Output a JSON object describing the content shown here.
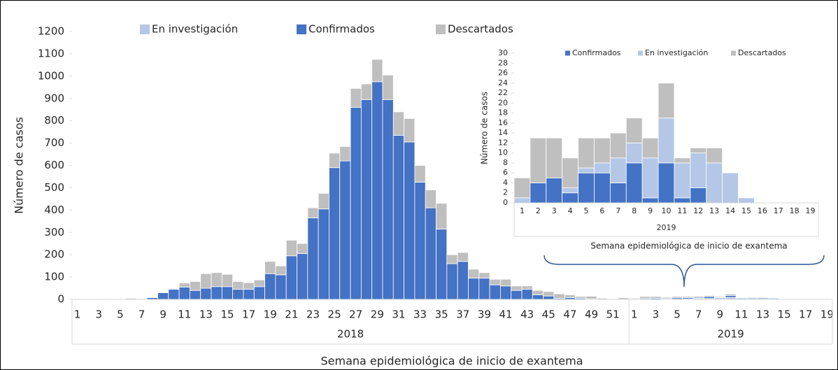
{
  "chart_data": [
    {
      "type": "bar",
      "stacked": true,
      "x_label": "Semana epidemiológica de inicio de exantema",
      "y_label": "Número de casos",
      "categories": [
        "1",
        null,
        "3",
        null,
        "5",
        null,
        "7",
        null,
        "9",
        null,
        "11",
        null,
        "13",
        null,
        "15",
        null,
        "17",
        null,
        "19",
        null,
        "21",
        null,
        "23",
        null,
        "25",
        null,
        "27",
        null,
        "29",
        null,
        "31",
        null,
        "33",
        null,
        "35",
        null,
        "37",
        null,
        "39",
        null,
        "41",
        null,
        "43",
        null,
        "45",
        null,
        "47",
        null,
        "49",
        null,
        "51",
        null,
        "1",
        null,
        "3",
        null,
        "5",
        null,
        "7",
        null,
        "9",
        null,
        "11",
        null,
        "13",
        null,
        "15",
        null,
        "17",
        null,
        "19"
      ],
      "groups": [
        {
          "label": "2018",
          "size": 52
        },
        {
          "label": "2019",
          "size": 19
        }
      ],
      "series": [
        {
          "name": "En investigación",
          "color": "#b4c7e7",
          "values": [
            0,
            0,
            0,
            0,
            0,
            0,
            0,
            0,
            0,
            0,
            0,
            0,
            0,
            0,
            0,
            0,
            0,
            0,
            0,
            0,
            0,
            0,
            0,
            0,
            0,
            0,
            0,
            0,
            0,
            0,
            0,
            0,
            0,
            0,
            0,
            0,
            0,
            0,
            0,
            0,
            0,
            0,
            0,
            0,
            0,
            0,
            0,
            0,
            0,
            0,
            0,
            0,
            1,
            0,
            0,
            1,
            1,
            2,
            5,
            4,
            8,
            9,
            7,
            7,
            8,
            6,
            1,
            0,
            0,
            0,
            0
          ]
        },
        {
          "name": "Confirmados",
          "color": "#4472c4",
          "values": [
            0,
            0,
            0,
            0,
            0,
            0,
            0,
            8,
            30,
            45,
            55,
            40,
            50,
            57,
            57,
            45,
            45,
            57,
            115,
            110,
            195,
            205,
            365,
            405,
            590,
            620,
            860,
            895,
            975,
            895,
            735,
            705,
            525,
            410,
            315,
            160,
            170,
            95,
            95,
            65,
            60,
            40,
            45,
            20,
            15,
            5,
            8,
            5,
            2,
            0,
            0,
            0,
            0,
            4,
            5,
            2,
            6,
            6,
            4,
            8,
            1,
            8,
            1,
            3,
            0,
            0,
            0,
            0,
            0,
            0,
            0
          ]
        },
        {
          "name": "Descartados",
          "color": "#bfbfbf",
          "values": [
            3,
            2,
            3,
            2,
            3,
            5,
            3,
            2,
            2,
            2,
            18,
            40,
            65,
            63,
            55,
            35,
            30,
            30,
            55,
            40,
            70,
            45,
            45,
            70,
            65,
            65,
            85,
            70,
            100,
            110,
            105,
            105,
            75,
            80,
            115,
            40,
            40,
            40,
            25,
            25,
            30,
            20,
            15,
            20,
            20,
            20,
            12,
            8,
            12,
            5,
            3,
            7,
            4,
            9,
            8,
            6,
            6,
            5,
            5,
            5,
            4,
            7,
            1,
            1,
            3,
            0,
            0,
            0,
            0,
            0,
            0
          ]
        }
      ],
      "ylim": [
        0,
        1200
      ],
      "yticks": [
        0,
        100,
        200,
        300,
        400,
        500,
        600,
        700,
        800,
        900,
        1000,
        1100,
        1200
      ]
    },
    {
      "type": "bar",
      "stacked": true,
      "x_label": "Semana epidemiológica de inicio de exantema",
      "y_label": "Número de casos",
      "categories": [
        "1",
        "2",
        "3",
        "4",
        "5",
        "6",
        "7",
        "8",
        "9",
        "10",
        "11",
        "12",
        "13",
        "14",
        "15",
        "16",
        "17",
        "18",
        "19"
      ],
      "groups": [
        {
          "label": "2019",
          "size": 19
        }
      ],
      "series": [
        {
          "name": "Confirmados",
          "color": "#4472c4",
          "values": [
            0,
            4,
            5,
            2,
            6,
            6,
            4,
            8,
            1,
            8,
            1,
            3,
            0,
            0,
            0,
            0,
            0,
            0,
            0
          ]
        },
        {
          "name": "En investigación",
          "color": "#b4c7e7",
          "values": [
            1,
            0,
            0,
            1,
            1,
            2,
            5,
            4,
            8,
            9,
            7,
            7,
            8,
            6,
            1,
            0,
            0,
            0,
            0
          ]
        },
        {
          "name": "Descartados",
          "color": "#bfbfbf",
          "values": [
            4,
            9,
            8,
            6,
            6,
            5,
            5,
            5,
            4,
            7,
            1,
            1,
            3,
            0,
            0,
            0,
            0,
            0,
            0
          ]
        }
      ],
      "ylim": [
        0,
        30
      ],
      "yticks": [
        0,
        2,
        4,
        6,
        8,
        10,
        12,
        14,
        16,
        18,
        20,
        22,
        24,
        26,
        28,
        30
      ]
    }
  ]
}
